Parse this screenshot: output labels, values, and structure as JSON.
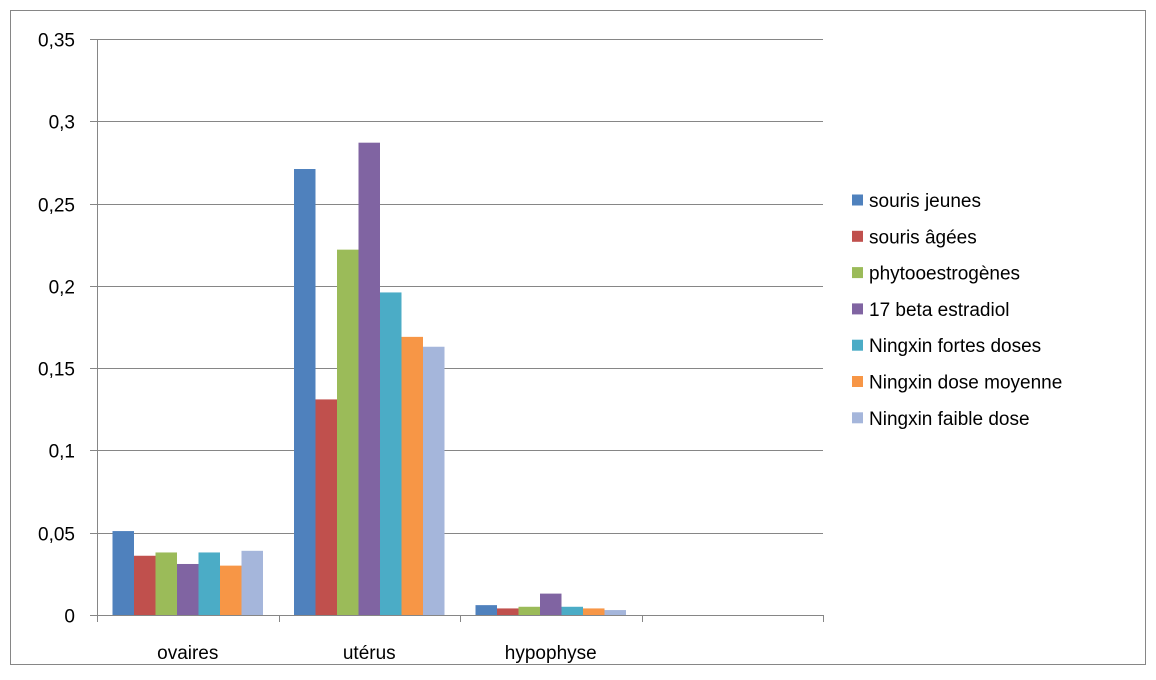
{
  "chart_data": {
    "type": "bar",
    "categories": [
      "ovaires",
      "utérus",
      "hypophyse",
      ""
    ],
    "y_ticks": [
      "0",
      "0,05",
      "0,1",
      "0,15",
      "0,2",
      "0,25",
      "0,3",
      "0,35"
    ],
    "y_tick_values": [
      0,
      0.05,
      0.1,
      0.15,
      0.2,
      0.25,
      0.3,
      0.35
    ],
    "ylim": [
      0,
      0.35
    ],
    "grid": "horizontal",
    "legend_position": "right",
    "series": [
      {
        "name": "souris jeunes",
        "color": "#4F81BD",
        "values": [
          0.051,
          0.271,
          0.006,
          null
        ]
      },
      {
        "name": "souris âgées",
        "color": "#C0504D",
        "values": [
          0.036,
          0.131,
          0.004,
          null
        ]
      },
      {
        "name": "phytooestrogènes",
        "color": "#9BBB59",
        "values": [
          0.038,
          0.222,
          0.005,
          null
        ]
      },
      {
        "name": "17 beta estradiol",
        "color": "#8064A2",
        "values": [
          0.031,
          0.287,
          0.013,
          null
        ]
      },
      {
        "name": "Ningxin fortes doses",
        "color": "#4BACC6",
        "values": [
          0.038,
          0.196,
          0.005,
          null
        ]
      },
      {
        "name": "Ningxin dose moyenne",
        "color": "#F79646",
        "values": [
          0.03,
          0.169,
          0.004,
          null
        ]
      },
      {
        "name": "Ningxin faible dose",
        "color": "#A5B6DB",
        "values": [
          0.039,
          0.163,
          0.003,
          null
        ]
      }
    ]
  }
}
